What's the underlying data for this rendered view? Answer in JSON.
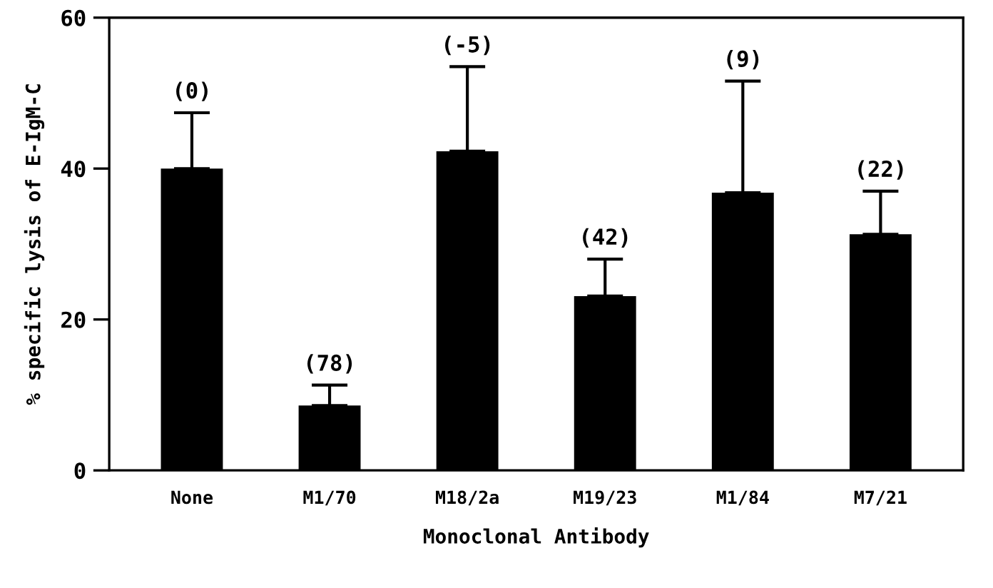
{
  "chart_data": {
    "type": "bar",
    "xlabel": "Monoclonal Antibody",
    "ylabel": "% specific lysis of E-IgM-C",
    "categories": [
      "None",
      "M1/70",
      "M18/2a",
      "M19/23",
      "M1/84",
      "M7/21"
    ],
    "values": [
      40,
      8.6,
      42.3,
      23.1,
      36.8,
      31.3
    ],
    "errors": [
      [
        40,
        47.4
      ],
      [
        8.6,
        11.3
      ],
      [
        42.3,
        53.5
      ],
      [
        23.1,
        28.0
      ],
      [
        36.8,
        51.6
      ],
      [
        31.3,
        37.0
      ]
    ],
    "color": "#000000",
    "ylim": [
      0,
      60
    ],
    "yticks": [
      0,
      20,
      40,
      60
    ],
    "grid": false,
    "annotations": [
      {
        "text": "(0)",
        "x": "None",
        "y": 47.4
      },
      {
        "text": "(78)",
        "x": "M1/70",
        "y": 11.3
      },
      {
        "text": "(-5)",
        "x": "M18/2a",
        "y": 53.5
      },
      {
        "text": "(42)",
        "x": "M19/23",
        "y": 28.0
      },
      {
        "text": "(9)",
        "x": "M1/84",
        "y": 51.6
      },
      {
        "text": "(22)",
        "x": "M7/21",
        "y": 37.0
      }
    ]
  }
}
